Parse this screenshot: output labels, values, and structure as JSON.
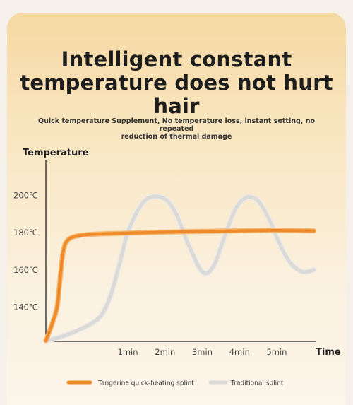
{
  "page": {
    "title_line1": "Intelligent constant",
    "title_line2": "temperature does not hurt hair",
    "subtitle_line1": "Quick temperature Supplement, No temperature loss, instant setting, no repeated",
    "subtitle_line2": "reduction of thermal damage"
  },
  "chart_data": {
    "type": "line",
    "xlabel": "Time",
    "ylabel": "Temperature",
    "x_ticks": [
      {
        "value": 1,
        "label": "1min"
      },
      {
        "value": 2,
        "label": "2min"
      },
      {
        "value": 3,
        "label": "3min"
      },
      {
        "value": 4,
        "label": "4min"
      },
      {
        "value": 5,
        "label": "5min"
      }
    ],
    "y_ticks": [
      {
        "value": 140,
        "label": "140℃"
      },
      {
        "value": 160,
        "label": "160℃"
      },
      {
        "value": 180,
        "label": "180℃"
      },
      {
        "value": 200,
        "label": "200℃"
      }
    ],
    "xlim": [
      -1.2,
      6.1
    ],
    "ylim": [
      122,
      200
    ],
    "series": [
      {
        "name": "Tangerine quick-heating splint",
        "color": "#ee8a2a",
        "x": [
          -1.2,
          -1.05,
          -0.9,
          -0.82,
          -0.75,
          -0.68,
          -0.55,
          -0.3,
          0.2,
          1.0,
          2.0,
          3.0,
          4.0,
          5.0,
          6.0
        ],
        "y": [
          122,
          130,
          140,
          155,
          168,
          174,
          177,
          178.5,
          179.3,
          179.8,
          180.3,
          180.7,
          181,
          181.2,
          181
        ]
      },
      {
        "name": "Traditional splint",
        "color": "#dcdad7",
        "x": [
          -1.2,
          -0.8,
          -0.4,
          0.0,
          0.3,
          0.55,
          0.8,
          1.0,
          1.3,
          1.6,
          2.0,
          2.3,
          2.6,
          3.0,
          3.3,
          3.6,
          3.9,
          4.2,
          4.5,
          4.8,
          5.1,
          5.4,
          5.7,
          6.0
        ],
        "y": [
          122,
          124,
          127,
          131,
          136,
          147,
          165,
          180,
          193,
          199,
          198,
          190,
          175,
          159,
          162,
          178,
          193,
          199,
          197,
          187,
          173,
          163,
          159,
          160
        ]
      }
    ],
    "legend_position": "bottom"
  }
}
